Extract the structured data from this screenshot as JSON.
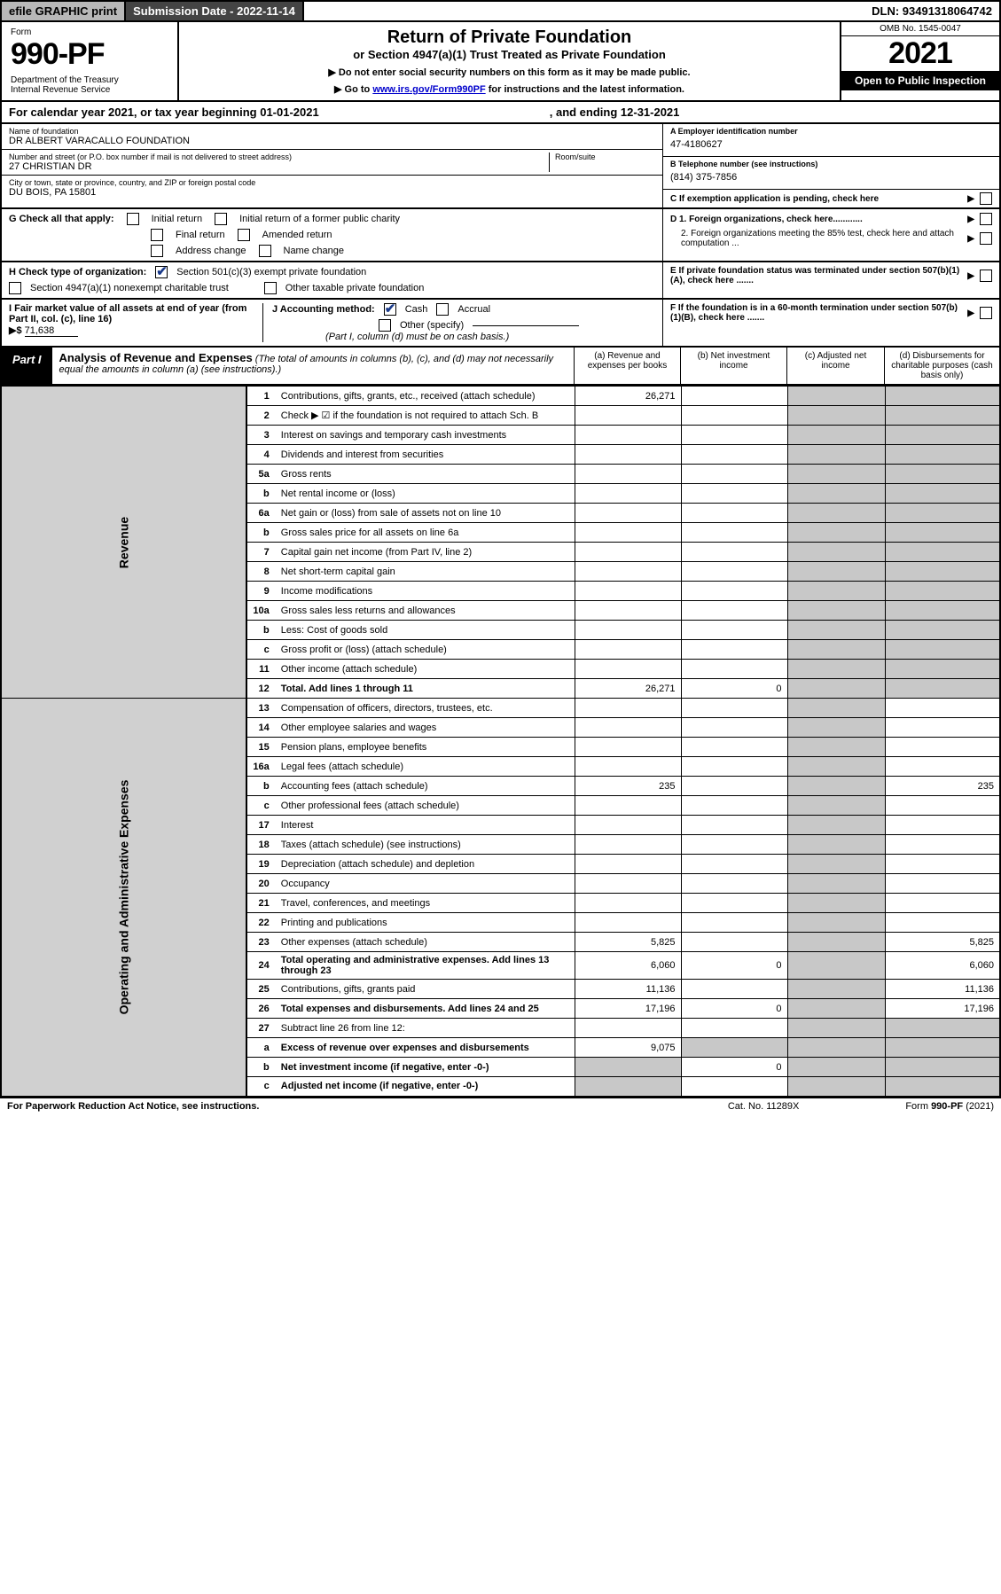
{
  "topbar": {
    "efile": "efile GRAPHIC print",
    "submission": "Submission Date - 2022-11-14",
    "dln": "DLN: 93491318064742"
  },
  "header": {
    "form_label": "Form",
    "form_no": "990-PF",
    "dept": "Department of the Treasury\nInternal Revenue Service",
    "title": "Return of Private Foundation",
    "subtitle": "or Section 4947(a)(1) Trust Treated as Private Foundation",
    "instr1": "▶ Do not enter social security numbers on this form as it may be made public.",
    "instr2a": "▶ Go to ",
    "instr2_link": "www.irs.gov/Form990PF",
    "instr2b": " for instructions and the latest information.",
    "omb": "OMB No. 1545-0047",
    "year": "2021",
    "open": "Open to Public Inspection"
  },
  "calyear": {
    "begin": "For calendar year 2021, or tax year beginning 01-01-2021",
    "end": ", and ending 12-31-2021"
  },
  "foundation": {
    "name_lbl": "Name of foundation",
    "name": "DR ALBERT VARACALLO FOUNDATION",
    "addr_lbl": "Number and street (or P.O. box number if mail is not delivered to street address)",
    "addr": "27 CHRISTIAN DR",
    "room_lbl": "Room/suite",
    "city_lbl": "City or town, state or province, country, and ZIP or foreign postal code",
    "city": "DU BOIS, PA  15801"
  },
  "right": {
    "a_lbl": "A Employer identification number",
    "a_val": "47-4180627",
    "b_lbl": "B Telephone number (see instructions)",
    "b_val": "(814) 375-7856",
    "c_lbl": "C If exemption application is pending, check here",
    "d1_lbl": "D 1. Foreign organizations, check here............",
    "d2_lbl": "2. Foreign organizations meeting the 85% test, check here and attach computation ...",
    "e_lbl": "E  If private foundation status was terminated under section 507(b)(1)(A), check here .......",
    "f_lbl": "F  If the foundation is in a 60-month termination under section 507(b)(1)(B), check here ......."
  },
  "g": {
    "lbl": "G Check all that apply:",
    "o1": "Initial return",
    "o2": "Initial return of a former public charity",
    "o3": "Final return",
    "o4": "Amended return",
    "o5": "Address change",
    "o6": "Name change"
  },
  "h": {
    "lbl": "H Check type of organization:",
    "o1": "Section 501(c)(3) exempt private foundation",
    "o2": "Section 4947(a)(1) nonexempt charitable trust",
    "o3": "Other taxable private foundation"
  },
  "i": {
    "lbl": "I Fair market value of all assets at end of year (from Part II, col. (c), line 16)",
    "arrow": "▶$",
    "val": "71,638"
  },
  "j": {
    "lbl": "J Accounting method:",
    "o1": "Cash",
    "o2": "Accrual",
    "o3": "Other (specify)",
    "note": "(Part I, column (d) must be on cash basis.)"
  },
  "part1": {
    "tag": "Part I",
    "title": "Analysis of Revenue and Expenses",
    "note": " (The total of amounts in columns (b), (c), and (d) may not necessarily equal the amounts in column (a) (see instructions).)",
    "ca": "(a)  Revenue and expenses per books",
    "cb": "(b)  Net investment income",
    "cc": "(c)  Adjusted net income",
    "cd": "(d)  Disbursements for charitable purposes (cash basis only)"
  },
  "side": {
    "rev": "Revenue",
    "ops": "Operating and Administrative Expenses"
  },
  "rows": [
    {
      "n": "1",
      "d": "Contributions, gifts, grants, etc., received (attach schedule)",
      "a": "26,271"
    },
    {
      "n": "2",
      "d": "Check ▶ ☑ if the foundation is not required to attach Sch. B"
    },
    {
      "n": "3",
      "d": "Interest on savings and temporary cash investments"
    },
    {
      "n": "4",
      "d": "Dividends and interest from securities"
    },
    {
      "n": "5a",
      "d": "Gross rents"
    },
    {
      "n": "b",
      "d": "Net rental income or (loss)"
    },
    {
      "n": "6a",
      "d": "Net gain or (loss) from sale of assets not on line 10"
    },
    {
      "n": "b",
      "d": "Gross sales price for all assets on line 6a"
    },
    {
      "n": "7",
      "d": "Capital gain net income (from Part IV, line 2)"
    },
    {
      "n": "8",
      "d": "Net short-term capital gain"
    },
    {
      "n": "9",
      "d": "Income modifications"
    },
    {
      "n": "10a",
      "d": "Gross sales less returns and allowances"
    },
    {
      "n": "b",
      "d": "Less: Cost of goods sold"
    },
    {
      "n": "c",
      "d": "Gross profit or (loss) (attach schedule)"
    },
    {
      "n": "11",
      "d": "Other income (attach schedule)"
    },
    {
      "n": "12",
      "d": "Total. Add lines 1 through 11",
      "bold": true,
      "a": "26,271",
      "b": "0"
    },
    {
      "n": "13",
      "d": "Compensation of officers, directors, trustees, etc."
    },
    {
      "n": "14",
      "d": "Other employee salaries and wages"
    },
    {
      "n": "15",
      "d": "Pension plans, employee benefits"
    },
    {
      "n": "16a",
      "d": "Legal fees (attach schedule)"
    },
    {
      "n": "b",
      "d": "Accounting fees (attach schedule)",
      "a": "235",
      "dd": "235"
    },
    {
      "n": "c",
      "d": "Other professional fees (attach schedule)"
    },
    {
      "n": "17",
      "d": "Interest"
    },
    {
      "n": "18",
      "d": "Taxes (attach schedule) (see instructions)"
    },
    {
      "n": "19",
      "d": "Depreciation (attach schedule) and depletion"
    },
    {
      "n": "20",
      "d": "Occupancy"
    },
    {
      "n": "21",
      "d": "Travel, conferences, and meetings"
    },
    {
      "n": "22",
      "d": "Printing and publications"
    },
    {
      "n": "23",
      "d": "Other expenses (attach schedule)",
      "a": "5,825",
      "dd": "5,825"
    },
    {
      "n": "24",
      "d": "Total operating and administrative expenses. Add lines 13 through 23",
      "bold": true,
      "a": "6,060",
      "b": "0",
      "dd": "6,060"
    },
    {
      "n": "25",
      "d": "Contributions, gifts, grants paid",
      "a": "11,136",
      "dd": "11,136"
    },
    {
      "n": "26",
      "d": "Total expenses and disbursements. Add lines 24 and 25",
      "bold": true,
      "a": "17,196",
      "b": "0",
      "dd": "17,196"
    },
    {
      "n": "27",
      "d": "Subtract line 26 from line 12:"
    },
    {
      "n": "a",
      "d": "Excess of revenue over expenses and disbursements",
      "bold": true,
      "a": "9,075"
    },
    {
      "n": "b",
      "d": "Net investment income (if negative, enter -0-)",
      "bold": true,
      "b": "0"
    },
    {
      "n": "c",
      "d": "Adjusted net income (if negative, enter -0-)",
      "bold": true
    }
  ],
  "footer": {
    "l": "For Paperwork Reduction Act Notice, see instructions.",
    "m": "Cat. No. 11289X",
    "r": "Form 990-PF (2021)"
  },
  "colors": {
    "shade": "#c8c8c8",
    "sidebar": "#d0d0d0",
    "topgray": "#b8b8b8",
    "topdark": "#444444"
  }
}
